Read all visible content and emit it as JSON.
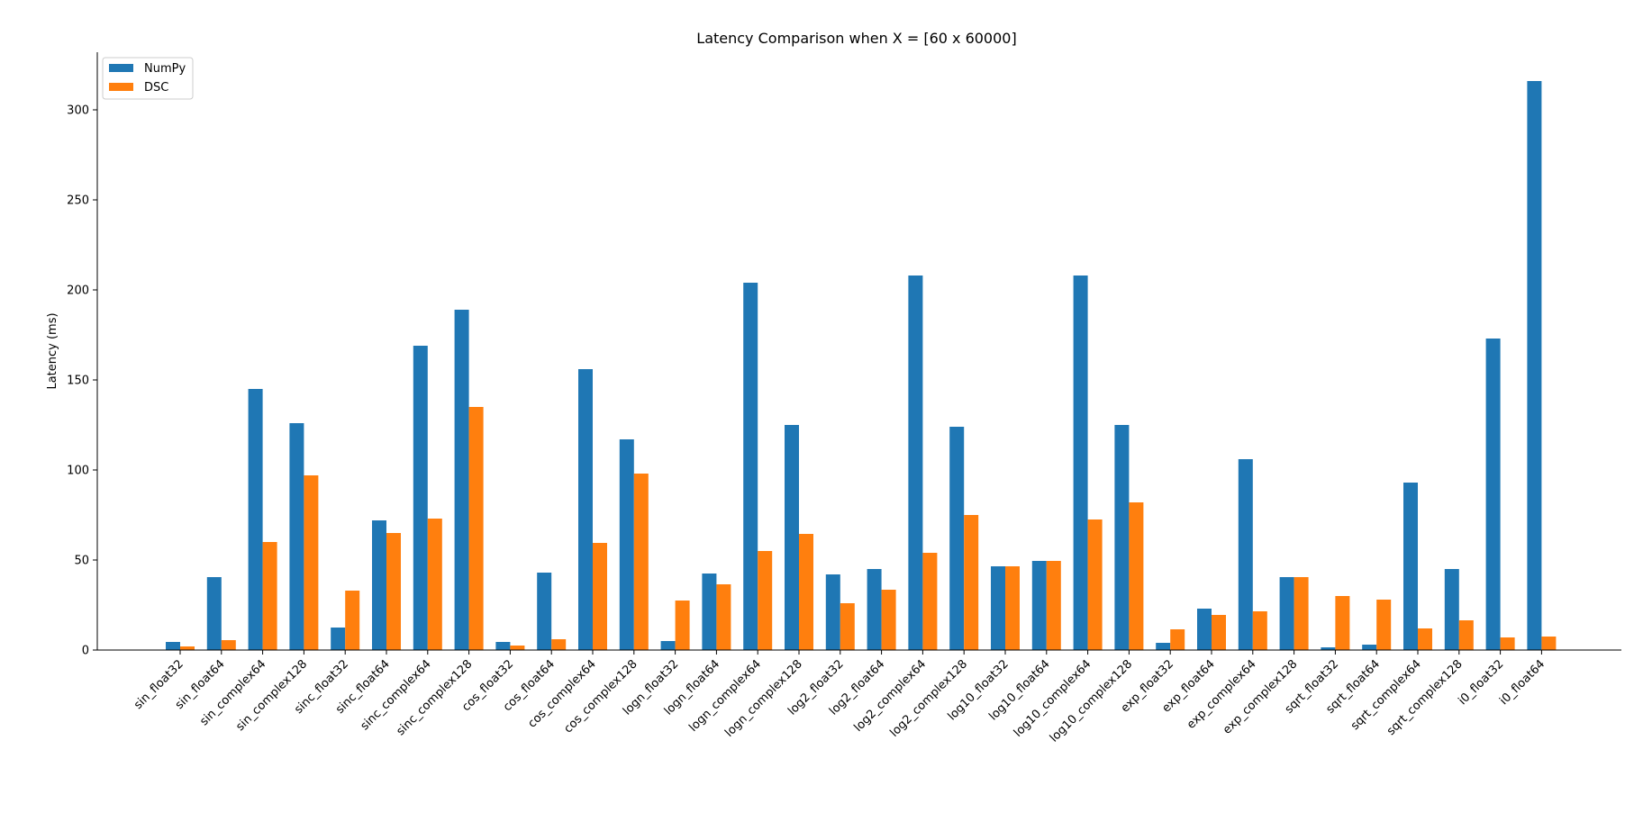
{
  "chart_data": {
    "type": "bar",
    "title": "Latency Comparison when X = [60 x 60000]",
    "xlabel": "",
    "ylabel": "Latency (ms)",
    "ylim": [
      0,
      332
    ],
    "yticks": [
      0,
      50,
      100,
      150,
      200,
      250,
      300
    ],
    "grid": false,
    "legend_position": "top-left",
    "categories": [
      "sin_float32",
      "sin_float64",
      "sin_complex64",
      "sin_complex128",
      "sinc_float32",
      "sinc_float64",
      "sinc_complex64",
      "sinc_complex128",
      "cos_float32",
      "cos_float64",
      "cos_complex64",
      "cos_complex128",
      "logn_float32",
      "logn_float64",
      "logn_complex64",
      "logn_complex128",
      "log2_float32",
      "log2_float64",
      "log2_complex64",
      "log2_complex128",
      "log10_float32",
      "log10_float64",
      "log10_complex64",
      "log10_complex128",
      "exp_float32",
      "exp_float64",
      "exp_complex64",
      "exp_complex128",
      "sqrt_float32",
      "sqrt_float64",
      "sqrt_complex64",
      "sqrt_complex128",
      "i0_float32",
      "i0_float64"
    ],
    "series": [
      {
        "name": "NumPy",
        "color": "#1f77b4",
        "values": [
          4.5,
          40.5,
          145,
          126,
          12.5,
          72,
          169,
          189,
          4.5,
          43,
          156,
          117,
          5,
          42.5,
          204,
          125,
          42,
          45,
          208,
          124,
          46.5,
          49.5,
          208,
          125,
          4,
          23,
          106,
          40.5,
          1.5,
          3,
          93,
          45,
          173,
          316
        ]
      },
      {
        "name": "DSC",
        "color": "#ff7f0e",
        "values": [
          2,
          5.5,
          60,
          97,
          33,
          65,
          73,
          135,
          2.5,
          6,
          59.5,
          98,
          27.5,
          36.5,
          55,
          64.5,
          26,
          33.5,
          54,
          75,
          46.5,
          49.5,
          72.5,
          82,
          11.5,
          19.5,
          21.5,
          40.5,
          30,
          28,
          12,
          16.5,
          7,
          7.5
        ]
      }
    ]
  }
}
